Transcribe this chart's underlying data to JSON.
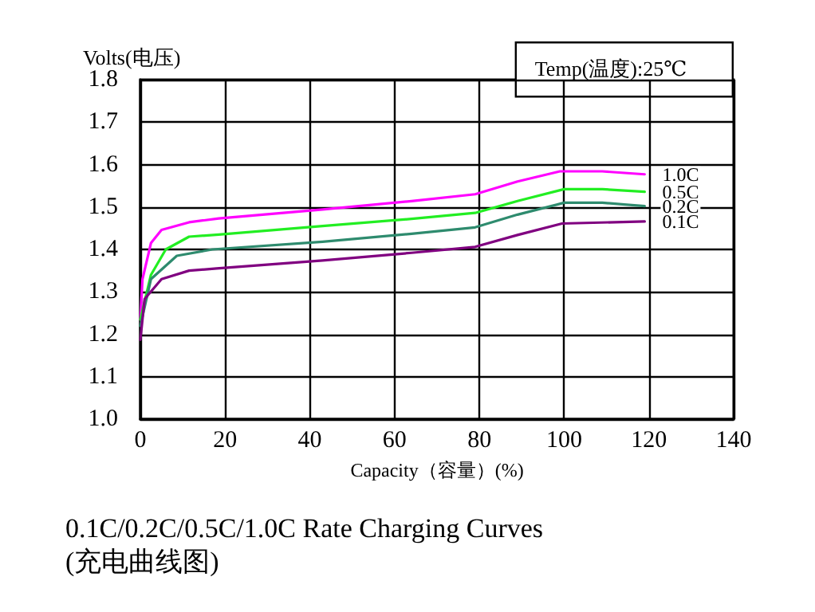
{
  "chart_data": {
    "type": "line",
    "title": "0.1C/0.2C/0.5C/1.0C Rate Charging Curves",
    "subtitle": "(充电曲线图)",
    "xlabel": "Capacity（容量）(%)",
    "ylabel": "Volts(电压)",
    "annotations": [
      "Temp(温度):25℃"
    ],
    "xlim": [
      0,
      140
    ],
    "xticks": [
      0,
      20,
      40,
      60,
      80,
      100,
      120,
      140
    ],
    "ylim": [
      1.0,
      1.8
    ],
    "yticks": [
      {
        "value": 1.0,
        "label": "1.0"
      },
      1.1,
      1.2,
      1.3,
      1.4,
      1.5,
      1.6,
      1.7,
      1.8
    ],
    "grid": true,
    "legend": false,
    "marker": "none",
    "line_style": "solid",
    "series": [
      {
        "name": "1.0C",
        "color": "#ff00ff",
        "x": [
          0,
          0.5,
          2.5,
          5,
          11.5,
          18.5,
          43,
          64,
          79,
          89,
          99,
          109,
          119
        ],
        "values": [
          1.235,
          1.33,
          1.415,
          1.446,
          1.464,
          1.473,
          1.494,
          1.514,
          1.53,
          1.56,
          1.584,
          1.584,
          1.577
        ]
      },
      {
        "name": "0.5C",
        "color": "#22ee22",
        "x": [
          0,
          2.5,
          6,
          11.5,
          18.5,
          43,
          64,
          79,
          89,
          100,
          109,
          119
        ],
        "values": [
          1.235,
          1.34,
          1.4,
          1.43,
          1.435,
          1.455,
          1.472,
          1.486,
          1.514,
          1.542,
          1.542,
          1.536
        ]
      },
      {
        "name": "0.2C",
        "color": "#2e8b6e",
        "x": [
          0,
          2.5,
          8.6,
          17,
          43,
          64,
          79,
          89,
          100,
          109,
          119
        ],
        "values": [
          1.22,
          1.33,
          1.385,
          1.4,
          1.418,
          1.437,
          1.452,
          1.482,
          1.51,
          1.51,
          1.502
        ]
      },
      {
        "name": "0.1C",
        "color": "#800080",
        "x": [
          0,
          1,
          5,
          11.5,
          18,
          43,
          64,
          79,
          89,
          99.5,
          119
        ],
        "values": [
          1.187,
          1.283,
          1.33,
          1.35,
          1.355,
          1.374,
          1.392,
          1.406,
          1.434,
          1.461,
          1.466
        ]
      }
    ]
  }
}
